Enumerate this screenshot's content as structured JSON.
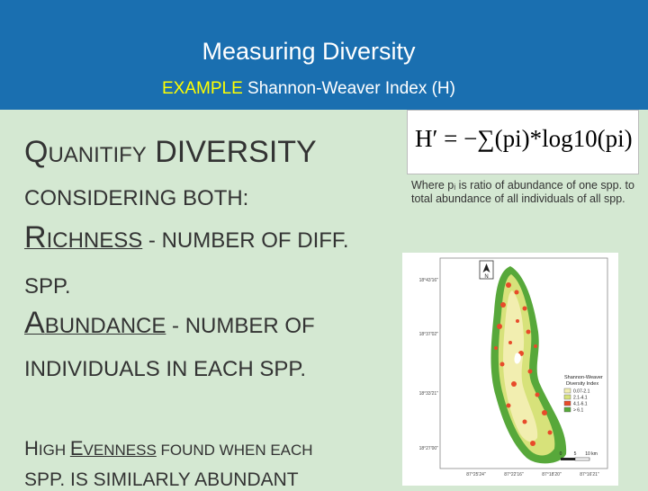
{
  "header": {
    "title": "Measuring Diversity",
    "subtitle_accent": "EXAMPLE",
    "subtitle_rest": " Shannon-Weaver Index (H)"
  },
  "body": {
    "line1_q": "Q",
    "line1_uanitify": "UANITIFY",
    "line1_diversity": " DIVERSITY",
    "line2": "CONSIDERING BOTH:",
    "line3_r": "R",
    "line3_ichness": "ICHNESS",
    "line3_rest": " - NUMBER OF DIFF.",
    "line4": "SPP.",
    "line5_a": "A",
    "line5_bundance": "BUNDANCE",
    "line5_rest": " - NUMBER OF",
    "line6": "INDIVIDUALS IN EACH SPP.",
    "line7_h": "H",
    "line7_igh": "IGH ",
    "line7_e": "E",
    "line7_venness": "VENNESS",
    "line7_rest": " FOUND WHEN EACH",
    "line8": "SPP. IS SIMILARLY ABUNDANT"
  },
  "formula": {
    "text": "H′ = −∑(pi)*log10(pi)"
  },
  "note": {
    "text": "Where pᵢ is ratio of abundance of one spp. to total abundance of all individuals of all spp."
  },
  "map": {
    "north_label": "N",
    "lat_ticks": [
      "18°43'16\"",
      "18°37'02\"",
      "18°33'21\"",
      "18°27'00\""
    ],
    "lon_ticks": [
      "87°25'24\"",
      "87°22'16\"",
      "87°18'20\"",
      "87°16'21\""
    ],
    "legend_title_1": "Shannon-Weaver",
    "legend_title_2": "Diversity Index",
    "legend_items": [
      {
        "label": "0.07-2.1",
        "color": "#f2eeb0"
      },
      {
        "label": "2.1-4.1",
        "color": "#d7e27a"
      },
      {
        "label": "4.1-6.1",
        "color": "#e84a2a"
      },
      {
        "label": "> 6.1",
        "color": "#57a83a"
      }
    ],
    "scale_labels": [
      "0",
      "5",
      "10 km"
    ]
  }
}
